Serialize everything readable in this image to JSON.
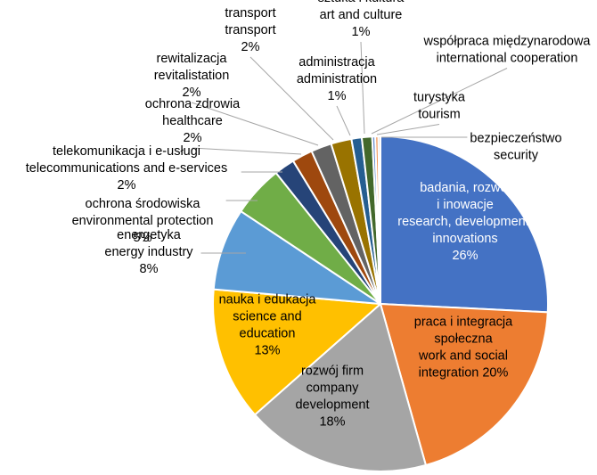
{
  "chart_data": {
    "type": "pie",
    "title": "",
    "slices": [
      {
        "label": [
          "badania, rozwój",
          "i inowacje",
          "research, development,",
          "innovations",
          "26%"
        ],
        "value": 26,
        "color": "#4472C4"
      },
      {
        "label": [
          "praca i integracja",
          "społeczna",
          "work and social",
          "integration 20%"
        ],
        "value": 20,
        "color": "#ED7D31"
      },
      {
        "label": [
          "rozwój firm",
          "company",
          "development",
          "18%"
        ],
        "value": 18,
        "color": "#A5A5A5"
      },
      {
        "label": [
          "nauka i edukacja",
          "science and",
          "education",
          "13%"
        ],
        "value": 13,
        "color": "#FFC000"
      },
      {
        "label": [
          "energetyka",
          "energy industry",
          "8%"
        ],
        "value": 8,
        "color": "#5B9BD5"
      },
      {
        "label": [
          "ochrona środowiska",
          "environmental protection",
          "5%"
        ],
        "value": 5,
        "color": "#70AD47"
      },
      {
        "label": [
          "telekomunikacja i e-usługi",
          "telecommunications and e-services",
          "2%"
        ],
        "value": 2,
        "color": "#264478"
      },
      {
        "label": [
          "ochrona zdrowia",
          "healthcare",
          "2%"
        ],
        "value": 2,
        "color": "#9E480E"
      },
      {
        "label": [
          "rewitalizacja",
          "revitalistation",
          "2%"
        ],
        "value": 2,
        "color": "#636363"
      },
      {
        "label": [
          "transport",
          "transport",
          "2%"
        ],
        "value": 2,
        "color": "#997300"
      },
      {
        "label": [
          "administracja",
          "administration",
          "1%"
        ],
        "value": 1,
        "color": "#255E91"
      },
      {
        "label": [
          "sztuka i kultura",
          "art and culture",
          "1%"
        ],
        "value": 1,
        "color": "#43682B"
      },
      {
        "label": [
          "współpraca międzynarodowa",
          "international cooperation"
        ],
        "value": 0.3,
        "color": "#698ED0"
      },
      {
        "label": [
          "turystyka",
          "tourism"
        ],
        "value": 0.3,
        "color": "#F1975A"
      },
      {
        "label": [
          "bezpieczeństwo",
          "security"
        ],
        "value": 0.2,
        "color": "#B7B7B7"
      }
    ]
  }
}
